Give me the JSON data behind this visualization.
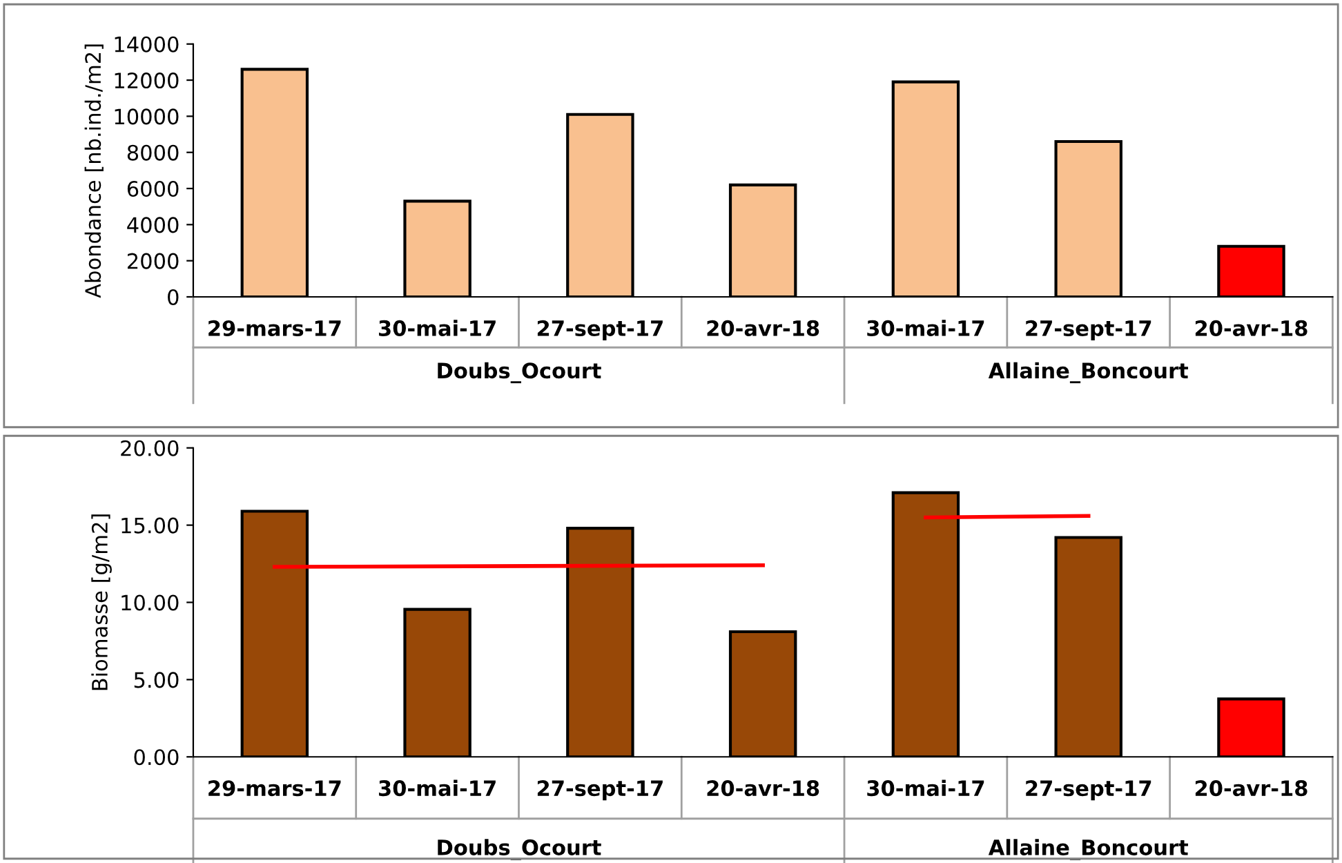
{
  "chart_data": [
    {
      "type": "bar",
      "ylabel": "Abondance [nb.ind./m2]",
      "categories": [
        "29-mars-17",
        "30-mai-17",
        "27-sept-17",
        "20-avr-18",
        "30-mai-17",
        "27-sept-17",
        "20-avr-18"
      ],
      "values": [
        12600,
        5300,
        10100,
        6200,
        11900,
        8600,
        2800
      ],
      "colors": [
        "#f9c08f",
        "#f9c08f",
        "#f9c08f",
        "#f9c08f",
        "#f9c08f",
        "#f9c08f",
        "#ff0000"
      ],
      "ylim": [
        0,
        14000
      ],
      "yticks": [
        0,
        2000,
        4000,
        6000,
        8000,
        10000,
        12000,
        14000
      ],
      "grid": false,
      "annotations": [
        "Doubs_Ocourt",
        "Allaine_Boncourt"
      ]
    },
    {
      "type": "bar",
      "ylabel": "Biomasse [g/m2]",
      "categories": [
        "29-mars-17",
        "30-mai-17",
        "27-sept-17",
        "20-avr-18",
        "30-mai-17",
        "27-sept-17",
        "20-avr-18"
      ],
      "series": [
        {
          "type": "bar",
          "values": [
            15.9,
            9.55,
            14.8,
            8.1,
            17.1,
            14.2,
            3.75
          ],
          "colors": [
            "#984807",
            "#984807",
            "#984807",
            "#984807",
            "#984807",
            "#984807",
            "#ff0000"
          ]
        },
        {
          "type": "line",
          "color": "#ff0000",
          "values": [
            12.3,
            null,
            null,
            12.4,
            null,
            null,
            null
          ]
        },
        {
          "type": "line",
          "color": "#ff0000",
          "values": [
            null,
            null,
            null,
            null,
            15.5,
            15.6,
            null
          ]
        }
      ],
      "ylim": [
        0,
        20
      ],
      "yticks": [
        {
          "value": 0,
          "label": "0.00"
        },
        {
          "value": 5,
          "label": "5.00"
        },
        {
          "value": 10,
          "label": "10.00"
        },
        {
          "value": 15,
          "label": "15.00"
        },
        {
          "value": 20,
          "label": "20.00"
        }
      ],
      "grid": false,
      "annotations": [
        "Doubs_Ocourt",
        "Allaine_Boncourt"
      ]
    }
  ]
}
